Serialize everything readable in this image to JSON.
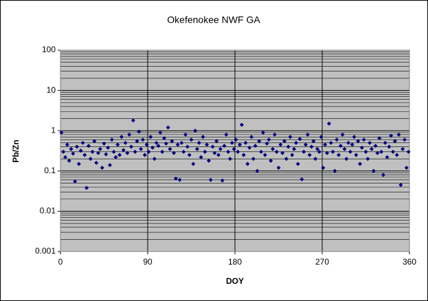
{
  "chart_data": {
    "type": "scatter",
    "title": "Okefenokee NWF GA",
    "x_label": "DOY",
    "y_label": "Pb/Zn",
    "xlim": [
      0,
      360
    ],
    "xticks": [
      0,
      90,
      180,
      270,
      360
    ],
    "ylim": [
      0.001,
      100
    ],
    "yticks": [
      0.001,
      0.01,
      0.1,
      1,
      10,
      100
    ],
    "log_y": true,
    "grid": true,
    "minor_grid": true,
    "plot_background": "#c0c0c0",
    "series": [
      {
        "name": "Pb/Zn",
        "color": "#000080",
        "x": [
          1,
          3,
          5,
          7,
          9,
          11,
          13,
          15,
          17,
          19,
          21,
          23,
          25,
          27,
          29,
          31,
          33,
          35,
          37,
          39,
          41,
          43,
          45,
          47,
          49,
          51,
          53,
          55,
          57,
          59,
          61,
          63,
          65,
          67,
          69,
          71,
          73,
          75,
          77,
          79,
          81,
          83,
          85,
          87,
          89,
          91,
          93,
          95,
          97,
          99,
          101,
          103,
          105,
          107,
          109,
          111,
          113,
          115,
          117,
          119,
          121,
          123,
          125,
          127,
          129,
          131,
          133,
          135,
          137,
          139,
          141,
          143,
          145,
          147,
          149,
          151,
          153,
          155,
          157,
          159,
          161,
          163,
          165,
          167,
          169,
          171,
          173,
          175,
          177,
          179,
          181,
          183,
          185,
          187,
          189,
          191,
          193,
          195,
          197,
          199,
          201,
          203,
          205,
          207,
          209,
          211,
          213,
          215,
          217,
          219,
          221,
          223,
          225,
          227,
          229,
          231,
          233,
          235,
          237,
          239,
          241,
          243,
          245,
          247,
          249,
          251,
          253,
          255,
          257,
          259,
          261,
          263,
          265,
          267,
          269,
          271,
          273,
          275,
          277,
          279,
          281,
          283,
          285,
          287,
          289,
          291,
          293,
          295,
          297,
          299,
          301,
          303,
          305,
          307,
          309,
          311,
          313,
          315,
          317,
          319,
          321,
          323,
          325,
          327,
          329,
          331,
          333,
          335,
          337,
          339,
          341,
          343,
          345,
          347,
          349,
          351,
          353,
          355,
          357,
          359
        ],
        "values": [
          0.9,
          0.3,
          0.22,
          0.45,
          0.18,
          0.35,
          0.27,
          0.055,
          0.4,
          0.15,
          0.32,
          0.5,
          0.25,
          0.038,
          0.42,
          0.2,
          0.3,
          0.55,
          0.16,
          0.28,
          0.35,
          0.12,
          0.48,
          0.26,
          0.38,
          0.14,
          0.6,
          0.3,
          0.22,
          0.45,
          0.25,
          0.7,
          0.33,
          0.5,
          0.28,
          0.8,
          0.4,
          1.8,
          0.3,
          0.55,
          0.95,
          0.35,
          0.6,
          0.25,
          0.45,
          0.3,
          0.7,
          0.38,
          0.2,
          0.5,
          0.42,
          0.9,
          0.3,
          0.65,
          0.48,
          1.2,
          0.35,
          0.55,
          0.28,
          0.065,
          0.45,
          0.06,
          0.5,
          0.3,
          0.8,
          0.4,
          0.25,
          0.6,
          0.15,
          1.0,
          0.35,
          0.5,
          0.22,
          0.7,
          0.3,
          0.45,
          0.18,
          0.06,
          0.4,
          0.28,
          0.55,
          0.25,
          0.35,
          0.058,
          0.42,
          0.8,
          0.3,
          0.2,
          0.5,
          0.35,
          0.6,
          0.3,
          0.45,
          1.4,
          0.25,
          0.5,
          0.15,
          0.38,
          0.7,
          0.2,
          0.42,
          0.1,
          0.55,
          0.3,
          0.9,
          0.25,
          0.48,
          0.6,
          0.18,
          0.35,
          0.8,
          0.3,
          0.12,
          0.45,
          0.28,
          0.55,
          0.2,
          0.4,
          0.7,
          0.25,
          0.35,
          0.5,
          0.15,
          0.62,
          0.062,
          0.3,
          0.45,
          0.8,
          0.25,
          0.4,
          0.55,
          0.2,
          0.35,
          0.3,
          0.7,
          0.12,
          0.45,
          0.28,
          1.5,
          0.5,
          0.3,
          0.1,
          0.6,
          0.25,
          0.42,
          0.8,
          0.35,
          0.2,
          0.5,
          0.3,
          0.45,
          0.7,
          0.25,
          0.55,
          0.15,
          0.38,
          0.6,
          0.3,
          0.2,
          0.5,
          0.35,
          0.1,
          0.42,
          0.28,
          0.65,
          0.3,
          0.08,
          0.5,
          0.22,
          0.4,
          0.75,
          0.3,
          0.55,
          0.25,
          0.8,
          0.045,
          0.35,
          0.6,
          0.12,
          0.3
        ]
      }
    ]
  }
}
